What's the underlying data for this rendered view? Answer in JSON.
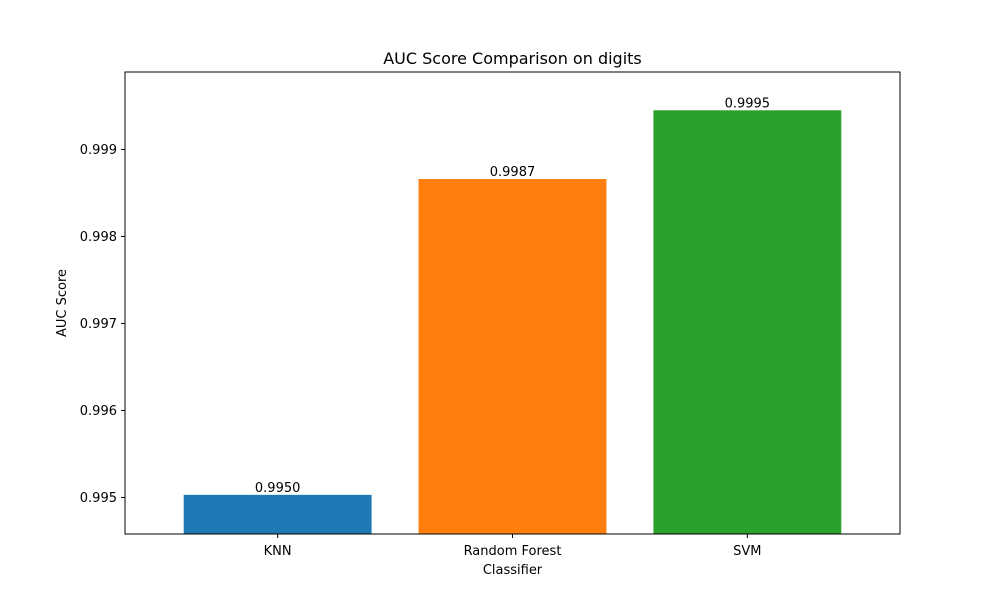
{
  "chart_data": {
    "type": "bar",
    "title": "AUC Score Comparison on digits",
    "xlabel": "Classifier",
    "ylabel": "AUC Score",
    "categories": [
      "KNN",
      "Random Forest",
      "SVM"
    ],
    "values": [
      0.99503,
      0.99866,
      0.99945
    ],
    "value_labels": [
      "0.9950",
      "0.9987",
      "0.9995"
    ],
    "colors": [
      "#1f77b4",
      "#ff7f0e",
      "#2ca02c"
    ],
    "ylim": [
      0.99458,
      0.99989
    ],
    "yticks": [
      0.995,
      0.996,
      0.997,
      0.998,
      0.999
    ],
    "ytick_labels": [
      "0.995",
      "0.996",
      "0.997",
      "0.998",
      "0.999"
    ],
    "grid": false,
    "legend": "none"
  }
}
